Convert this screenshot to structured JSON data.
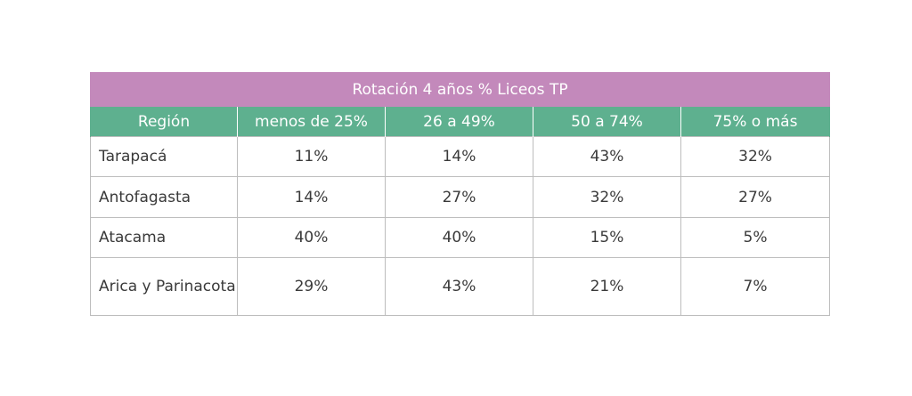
{
  "chart_data": {
    "type": "table",
    "title": "Rotación 4 años % Liceos TP",
    "columns": [
      "Región",
      "menos de 25%",
      "26 a 49%",
      "50 a 74%",
      "75% o más"
    ],
    "rows": [
      {
        "region": "Tarapacá",
        "values": [
          "11%",
          "14%",
          "43%",
          "32%"
        ]
      },
      {
        "region": "Antofagasta",
        "values": [
          "14%",
          "27%",
          "32%",
          "27%"
        ]
      },
      {
        "region": "Atacama",
        "values": [
          "40%",
          "40%",
          "15%",
          "5%"
        ]
      },
      {
        "region": "Arica y Parinacota",
        "values": [
          "29%",
          "43%",
          "21%",
          "7%"
        ]
      }
    ],
    "colors": {
      "title_bg": "#c389bb",
      "header_bg": "#5eb08f",
      "border": "#bdbdbd"
    }
  }
}
